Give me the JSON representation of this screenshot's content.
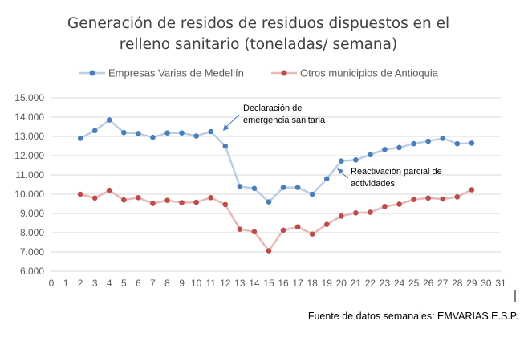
{
  "chart_data": {
    "type": "line",
    "title_lines": [
      "Generación de residos de residuos dispuestos en el",
      "relleno sanitario (toneladas/ semana)"
    ],
    "xlabel": "",
    "ylabel": "",
    "x": [
      2,
      3,
      4,
      5,
      6,
      7,
      8,
      9,
      10,
      11,
      12,
      13,
      14,
      15,
      16,
      17,
      18,
      19,
      20,
      21,
      22,
      23,
      24,
      25,
      26,
      27,
      28,
      29
    ],
    "xlim": [
      0,
      31
    ],
    "x_ticks": [
      0,
      1,
      2,
      3,
      4,
      5,
      6,
      7,
      8,
      9,
      10,
      11,
      12,
      13,
      14,
      15,
      16,
      17,
      18,
      19,
      20,
      21,
      22,
      23,
      24,
      25,
      26,
      27,
      28,
      29,
      30,
      31
    ],
    "ylim": [
      6000,
      15000
    ],
    "y_ticks": [
      6000,
      7000,
      8000,
      9000,
      10000,
      11000,
      12000,
      13000,
      14000,
      15000
    ],
    "y_tick_labels": [
      "6.000",
      "7.000",
      "8.000",
      "9.000",
      "10.000",
      "11.000",
      "12.000",
      "13.000",
      "14.000",
      "15.000"
    ],
    "grid": "horizontal",
    "legend_position": "top",
    "series": [
      {
        "name": "Empresas Varias de Medellín",
        "color": "#4a7ebb",
        "line_color": "#b9cde5",
        "values": [
          12900,
          13300,
          13850,
          13200,
          13150,
          12950,
          13180,
          13180,
          13020,
          13250,
          12500,
          10400,
          10300,
          9600,
          10350,
          10350,
          10000,
          10800,
          11720,
          11780,
          12050,
          12320,
          12420,
          12620,
          12750,
          12900,
          12620,
          12650
        ]
      },
      {
        "name": "Otros municipios de Antioquia",
        "color": "#be4b48",
        "line_color": "#e6b9b8",
        "values": [
          10000,
          9800,
          10200,
          9700,
          9820,
          9520,
          9680,
          9560,
          9580,
          9820,
          9460,
          8180,
          8050,
          7060,
          8130,
          8300,
          7930,
          8430,
          8860,
          9030,
          9060,
          9360,
          9480,
          9720,
          9800,
          9750,
          9860,
          10230
        ]
      }
    ],
    "annotations": [
      {
        "lines": [
          "Declaración de",
          "emergencia sanitaria"
        ],
        "arrow_color": "#4a7ebb",
        "x": 12
      },
      {
        "lines": [
          "Reactivación parcial de",
          "actividades"
        ],
        "arrow_color": "#4a7ebb",
        "x": 20
      }
    ],
    "source": "Fuente de datos semanales: EMVARIAS E.S.P."
  }
}
